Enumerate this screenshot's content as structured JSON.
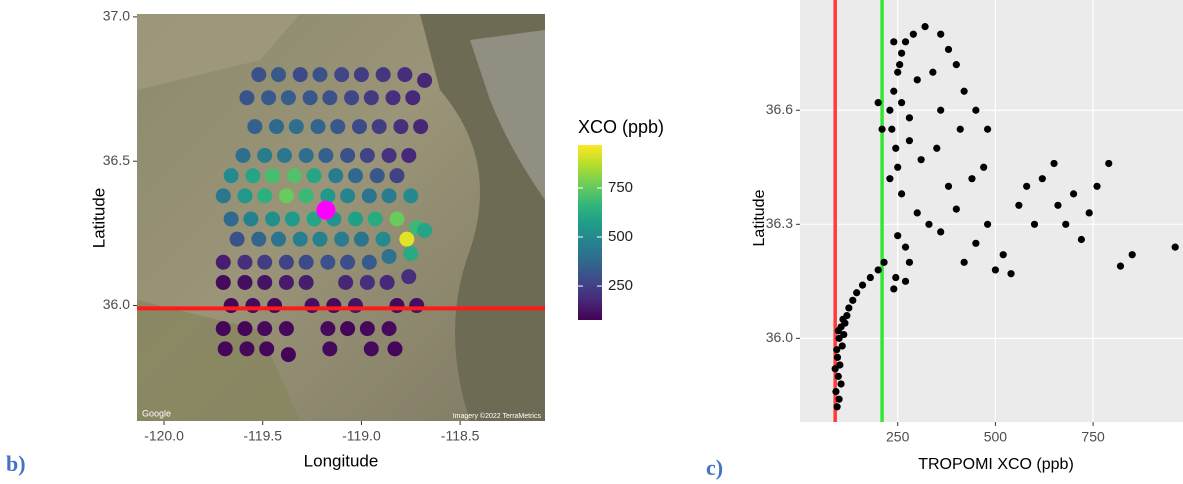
{
  "chart_data": [
    {
      "type": "map-scatter",
      "panel_label": "b)",
      "x_label": "Longitude",
      "y_label": "Latitude",
      "legend_title": "XCO (ppb)",
      "colormap": "viridis",
      "colorlim": [
        77,
        969
      ],
      "colorticks": [
        250,
        500,
        750
      ],
      "credits": [
        "Google",
        "Imagery ©2022 TerraMetrics"
      ],
      "xlim": [
        -120.137,
        -118.07
      ],
      "ylim": [
        35.6,
        37.01
      ],
      "xticks": [
        {
          "value": -120,
          "label": "-120.0"
        },
        -119.5,
        {
          "value": -119,
          "label": "-119.0"
        },
        -118.5
      ],
      "yticks": [
        {
          "value": 37,
          "label": "37.0"
        },
        36.5,
        {
          "value": 36,
          "label": "36.0"
        }
      ],
      "hline": {
        "value": 35.99,
        "color": "#ff1a1a"
      },
      "highlight": {
        "x": -119.18,
        "y": 36.33,
        "color": "#ff00ff"
      },
      "x": [
        -119.52,
        -119.42,
        -119.31,
        -119.21,
        -119.1,
        -119.0,
        -118.89,
        -118.78,
        -118.68,
        -119.58,
        -119.47,
        -119.37,
        -119.26,
        -119.16,
        -119.05,
        -118.95,
        -118.84,
        -118.74,
        -119.54,
        -119.43,
        -119.33,
        -119.22,
        -119.12,
        -119.01,
        -118.91,
        -118.8,
        -118.7,
        -119.6,
        -119.49,
        -119.39,
        -119.28,
        -119.18,
        -119.07,
        -118.97,
        -118.86,
        -118.76,
        -119.66,
        -119.55,
        -119.45,
        -119.34,
        -119.24,
        -119.13,
        -119.03,
        -118.92,
        -118.82,
        -119.7,
        -119.59,
        -119.49,
        -119.38,
        -119.28,
        -119.17,
        -119.07,
        -118.96,
        -118.86,
        -118.75,
        -119.66,
        -119.56,
        -119.45,
        -119.35,
        -119.24,
        -119.14,
        -119.03,
        -118.93,
        -118.82,
        -118.72,
        -119.63,
        -119.52,
        -119.42,
        -119.31,
        -119.21,
        -119.1,
        -119.0,
        -118.89,
        -118.68,
        -118.77,
        -119.7,
        -119.59,
        -119.49,
        -119.38,
        -119.28,
        -119.17,
        -119.07,
        -118.96,
        -118.86,
        -118.75,
        -119.7,
        -119.59,
        -119.49,
        -119.38,
        -119.28,
        -119.08,
        -118.97,
        -118.87,
        -118.76,
        -119.66,
        -119.55,
        -119.44,
        -119.25,
        -119.14,
        -119.03,
        -118.82,
        -118.72,
        -119.7,
        -119.59,
        -119.49,
        -119.38,
        -119.17,
        -119.07,
        -118.97,
        -118.86,
        -119.69,
        -119.58,
        -119.48,
        -119.37,
        -119.16,
        -118.95,
        -118.83
      ],
      "y": [
        36.8,
        36.8,
        36.8,
        36.8,
        36.8,
        36.8,
        36.8,
        36.8,
        36.78,
        36.72,
        36.72,
        36.72,
        36.72,
        36.72,
        36.72,
        36.72,
        36.72,
        36.72,
        36.62,
        36.62,
        36.62,
        36.62,
        36.62,
        36.62,
        36.62,
        36.62,
        36.62,
        36.52,
        36.52,
        36.52,
        36.52,
        36.52,
        36.52,
        36.52,
        36.52,
        36.52,
        36.45,
        36.45,
        36.45,
        36.45,
        36.45,
        36.45,
        36.45,
        36.45,
        36.45,
        36.38,
        36.38,
        36.38,
        36.38,
        36.38,
        36.38,
        36.38,
        36.38,
        36.38,
        36.38,
        36.3,
        36.3,
        36.3,
        36.3,
        36.3,
        36.3,
        36.3,
        36.3,
        36.3,
        36.27,
        36.23,
        36.23,
        36.23,
        36.23,
        36.23,
        36.23,
        36.23,
        36.23,
        36.26,
        36.23,
        36.15,
        36.15,
        36.15,
        36.15,
        36.15,
        36.15,
        36.15,
        36.15,
        36.17,
        36.18,
        36.08,
        36.08,
        36.08,
        36.08,
        36.08,
        36.08,
        36.08,
        36.08,
        36.1,
        36.0,
        36.0,
        36.0,
        36.0,
        36.0,
        36.0,
        36.0,
        36.0,
        35.92,
        35.92,
        35.92,
        35.92,
        35.92,
        35.92,
        35.92,
        35.92,
        35.85,
        35.85,
        35.85,
        35.83,
        35.85,
        35.85,
        35.85
      ],
      "values": [
        300,
        320,
        280,
        300,
        270,
        240,
        220,
        190,
        170,
        310,
        330,
        340,
        320,
        300,
        270,
        230,
        200,
        180,
        350,
        380,
        400,
        360,
        320,
        280,
        240,
        200,
        170,
        400,
        450,
        430,
        400,
        350,
        300,
        260,
        210,
        180,
        500,
        600,
        700,
        720,
        600,
        450,
        380,
        320,
        250,
        430,
        550,
        640,
        760,
        680,
        550,
        480,
        420,
        450,
        500,
        380,
        470,
        520,
        560,
        600,
        540,
        580,
        620,
        760,
        680,
        300,
        360,
        420,
        460,
        470,
        450,
        420,
        500,
        600,
        930,
        150,
        200,
        240,
        260,
        280,
        300,
        290,
        330,
        420,
        620,
        100,
        110,
        120,
        140,
        150,
        170,
        200,
        180,
        200,
        90,
        100,
        95,
        110,
        100,
        120,
        100,
        110,
        90,
        90,
        100,
        95,
        100,
        90,
        95,
        100,
        90,
        95,
        90,
        85,
        95,
        100,
        90
      ]
    },
    {
      "type": "scatter",
      "panel_label": "c)",
      "x_label": "TROPOMI XCO (ppb)",
      "y_label": "Latitude",
      "color": "#000000",
      "grid": true,
      "xlim": [
        0,
        980
      ],
      "ylim": [
        35.78,
        36.89
      ],
      "xticks": [
        250,
        500,
        750
      ],
      "yticks": [
        {
          "value": 36,
          "label": "36.0"
        },
        36.3,
        36.6
      ],
      "vlines": [
        {
          "value": 90,
          "color": "#ff3b3b"
        },
        {
          "value": 210,
          "color": "#33e633"
        }
      ],
      "x": [
        95,
        100,
        92,
        105,
        98,
        90,
        102,
        96,
        94,
        108,
        100,
        112,
        98,
        105,
        115,
        110,
        120,
        125,
        135,
        145,
        160,
        180,
        200,
        215,
        245,
        270,
        240,
        230,
        240,
        250,
        260,
        270,
        290,
        320,
        360,
        380,
        240,
        255,
        235,
        245,
        250,
        260,
        280,
        300,
        340,
        400,
        420,
        450,
        410,
        360,
        280,
        230,
        260,
        310,
        350,
        200,
        210,
        480,
        440,
        300,
        330,
        360,
        400,
        420,
        450,
        480,
        500,
        520,
        560,
        580,
        600,
        620,
        650,
        660,
        680,
        700,
        720,
        740,
        760,
        790,
        820,
        850,
        960,
        540,
        470,
        380,
        270,
        250,
        280
      ],
      "y": [
        35.82,
        35.84,
        35.86,
        35.88,
        35.9,
        35.92,
        35.93,
        35.95,
        35.97,
        35.98,
        36.0,
        36.01,
        36.02,
        36.03,
        36.04,
        36.05,
        36.06,
        36.08,
        36.1,
        36.12,
        36.14,
        36.16,
        36.18,
        36.2,
        36.16,
        36.15,
        36.13,
        36.6,
        36.65,
        36.7,
        36.75,
        36.78,
        36.8,
        36.82,
        36.8,
        36.76,
        36.78,
        36.72,
        36.55,
        36.5,
        36.45,
        36.62,
        36.58,
        36.68,
        36.7,
        36.72,
        36.65,
        36.6,
        36.55,
        36.6,
        36.52,
        36.42,
        36.38,
        36.47,
        36.5,
        36.62,
        36.55,
        36.55,
        36.42,
        36.33,
        36.3,
        36.28,
        36.34,
        36.2,
        36.25,
        36.3,
        36.18,
        36.22,
        36.35,
        36.4,
        36.3,
        36.42,
        36.46,
        36.35,
        36.3,
        36.38,
        36.26,
        36.33,
        36.4,
        36.46,
        36.19,
        36.22,
        36.24,
        36.17,
        36.45,
        36.4,
        36.24,
        36.27,
        36.2
      ]
    }
  ]
}
